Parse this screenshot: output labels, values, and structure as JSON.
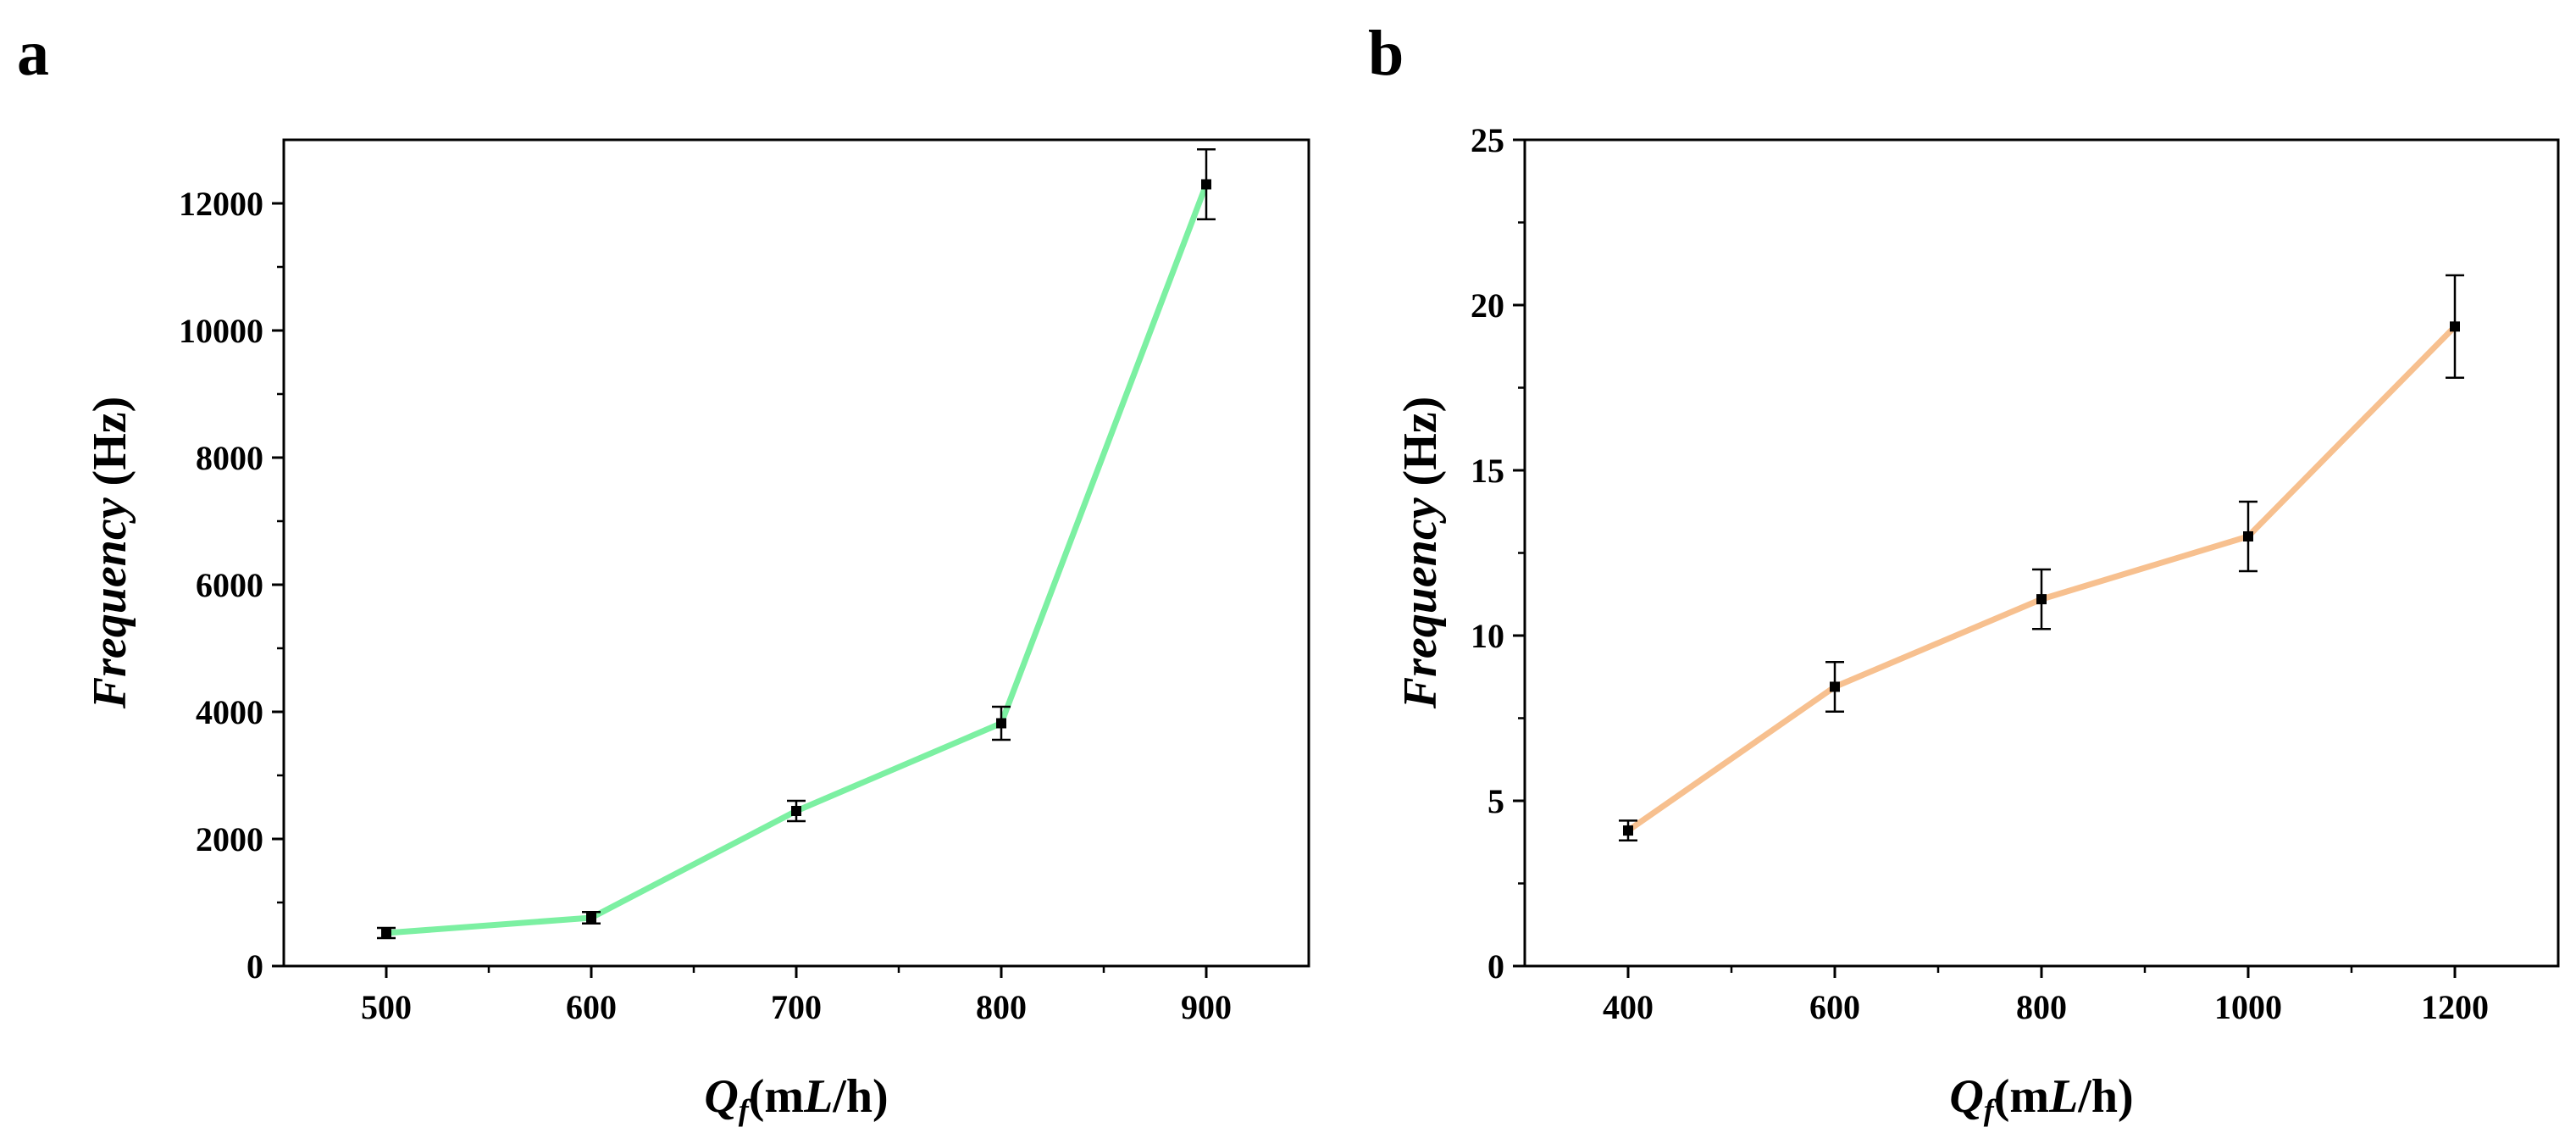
{
  "chart_data": [
    {
      "panel_label": "a",
      "type": "line",
      "x": [
        500,
        600,
        700,
        800,
        900
      ],
      "y": [
        520,
        760,
        2440,
        3820,
        12300
      ],
      "error": [
        80,
        90,
        160,
        260,
        550
      ],
      "line_color": "#7cf0a2",
      "xlim": [
        450,
        950
      ],
      "ylim": [
        0,
        13000
      ],
      "x_ticks": [
        500,
        600,
        700,
        800,
        900
      ],
      "y_ticks": [
        0,
        2000,
        4000,
        6000,
        8000,
        10000,
        12000
      ],
      "ylabel_italic": "Frequency",
      "ylabel_unit": "(Hz)",
      "xlabel_symbol": "Q",
      "xlabel_subscript": "f",
      "xlabel_unit_prefix": "(m",
      "xlabel_unit_italic": "L",
      "xlabel_unit_suffix": "/h)"
    },
    {
      "panel_label": "b",
      "type": "line",
      "x": [
        400,
        600,
        800,
        1000,
        1200
      ],
      "y": [
        4.1,
        8.45,
        11.1,
        13.0,
        19.35
      ],
      "error": [
        0.3,
        0.75,
        0.9,
        1.05,
        1.55
      ],
      "line_color": "#f7c08f",
      "xlim": [
        300,
        1300
      ],
      "ylim": [
        0,
        25
      ],
      "x_ticks": [
        400,
        600,
        800,
        1000,
        1200
      ],
      "y_ticks": [
        0,
        5,
        10,
        15,
        20,
        25
      ],
      "ylabel_italic": "Frequency",
      "ylabel_unit": "(Hz)",
      "xlabel_symbol": "Q",
      "xlabel_subscript": "f",
      "xlabel_unit_prefix": "(m",
      "xlabel_unit_italic": "L",
      "xlabel_unit_suffix": "/h)"
    }
  ]
}
